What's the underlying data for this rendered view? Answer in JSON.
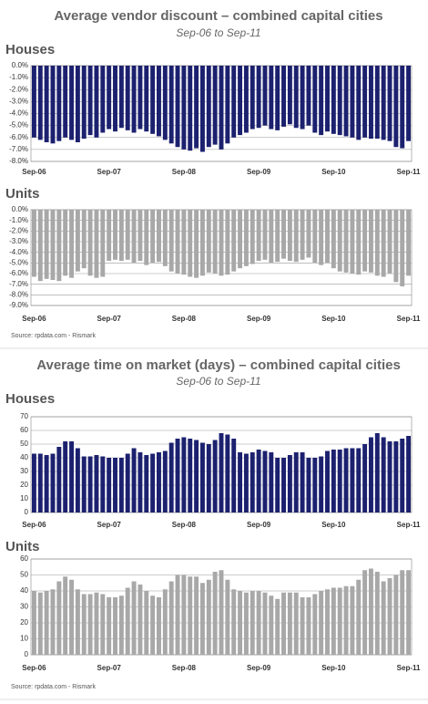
{
  "panels": [
    {
      "title": "Average vendor discount – combined capital cities",
      "subtitle": "Sep-06 to Sep-11",
      "source": "Source: rpdata.com - Rismark"
    },
    {
      "title": "Average time on market (days) – combined capital cities",
      "subtitle": "Sep-06 to Sep-11",
      "source": "Source: rpdata.com - Rismark"
    }
  ],
  "chart_data": [
    {
      "type": "bar",
      "title": "Houses",
      "color": "#1c216f",
      "grid": true,
      "categories": [
        "Sep-06",
        null,
        null,
        null,
        null,
        null,
        null,
        null,
        null,
        null,
        null,
        null,
        "Sep-07",
        null,
        null,
        null,
        null,
        null,
        null,
        null,
        null,
        null,
        null,
        null,
        "Sep-08",
        null,
        null,
        null,
        null,
        null,
        null,
        null,
        null,
        null,
        null,
        null,
        "Sep-09",
        null,
        null,
        null,
        null,
        null,
        null,
        null,
        null,
        null,
        null,
        null,
        "Sep-10",
        null,
        null,
        null,
        null,
        null,
        null,
        null,
        null,
        null,
        null,
        null,
        "Sep-11"
      ],
      "values": [
        -6.0,
        -6.2,
        -6.4,
        -6.5,
        -6.3,
        -6.0,
        -6.2,
        -6.4,
        -6.1,
        -5.8,
        -6.0,
        -5.6,
        -5.3,
        -5.5,
        -5.2,
        -5.4,
        -5.6,
        -5.3,
        -5.5,
        -5.7,
        -5.9,
        -6.2,
        -6.5,
        -6.8,
        -7.0,
        -7.1,
        -6.9,
        -7.2,
        -6.8,
        -6.6,
        -7.0,
        -6.5,
        -6.0,
        -5.8,
        -5.6,
        -5.3,
        -5.2,
        -5.0,
        -5.3,
        -5.4,
        -5.1,
        -4.9,
        -5.2,
        -5.3,
        -5.0,
        -5.6,
        -5.8,
        -5.5,
        -5.7,
        -5.8,
        -5.9,
        -6.0,
        -6.2,
        -6.0,
        -6.1,
        -6.1,
        -6.2,
        -6.3,
        -6.8,
        -6.9,
        -6.3
      ],
      "ylim": [
        -8,
        0
      ],
      "yticks": [
        {
          "value": 0,
          "label": "0.0%"
        },
        {
          "value": -1,
          "label": "-1.0%"
        },
        {
          "value": -2,
          "label": "-2.0%"
        },
        {
          "value": -3,
          "label": "-3.0%"
        },
        {
          "value": -4,
          "label": "-4.0%"
        },
        {
          "value": -5,
          "label": "-5.0%"
        },
        {
          "value": -6,
          "label": "-6.0%"
        },
        {
          "value": -7,
          "label": "-7.0%"
        },
        {
          "value": -8,
          "label": "-8.0%"
        }
      ]
    },
    {
      "type": "bar",
      "title": "Units",
      "color": "#a8a8a8",
      "grid": true,
      "categories": [
        "Sep-06",
        null,
        null,
        null,
        null,
        null,
        null,
        null,
        null,
        null,
        null,
        null,
        "Sep-07",
        null,
        null,
        null,
        null,
        null,
        null,
        null,
        null,
        null,
        null,
        null,
        "Sep-08",
        null,
        null,
        null,
        null,
        null,
        null,
        null,
        null,
        null,
        null,
        null,
        "Sep-09",
        null,
        null,
        null,
        null,
        null,
        null,
        null,
        null,
        null,
        null,
        null,
        "Sep-10",
        null,
        null,
        null,
        null,
        null,
        null,
        null,
        null,
        null,
        null,
        null,
        "Sep-11"
      ],
      "values": [
        -6.3,
        -6.7,
        -6.5,
        -6.6,
        -6.7,
        -6.2,
        -6.4,
        -5.8,
        -5.5,
        -6.2,
        -6.4,
        -6.3,
        -4.8,
        -4.7,
        -4.8,
        -4.7,
        -5.0,
        -4.8,
        -5.2,
        -5.0,
        -4.9,
        -5.3,
        -5.8,
        -6.0,
        -6.1,
        -6.3,
        -6.4,
        -6.2,
        -5.9,
        -6.0,
        -6.2,
        -6.1,
        -5.8,
        -5.5,
        -5.3,
        -5.1,
        -4.8,
        -4.7,
        -5.0,
        -4.9,
        -4.6,
        -4.8,
        -4.9,
        -4.7,
        -4.5,
        -5.0,
        -5.2,
        -5.0,
        -5.5,
        -5.8,
        -5.9,
        -6.0,
        -6.1,
        -5.8,
        -5.9,
        -6.2,
        -6.3,
        -6.0,
        -6.8,
        -7.2,
        -6.2
      ],
      "ylim": [
        -9,
        0
      ],
      "yticks": [
        {
          "value": 0,
          "label": "0.0%"
        },
        {
          "value": -1,
          "label": "-1.0%"
        },
        {
          "value": -2,
          "label": "-2.0%"
        },
        {
          "value": -3,
          "label": "-3.0%"
        },
        {
          "value": -4,
          "label": "-4.0%"
        },
        {
          "value": -5,
          "label": "-5.0%"
        },
        {
          "value": -6,
          "label": "-6.0%"
        },
        {
          "value": -7,
          "label": "-7.0%"
        },
        {
          "value": -8,
          "label": "-8.0%"
        },
        {
          "value": -9,
          "label": "-9.0%"
        }
      ]
    },
    {
      "type": "bar",
      "title": "Houses",
      "color": "#1c216f",
      "grid": true,
      "categories": [
        "Sep-06",
        null,
        null,
        null,
        null,
        null,
        null,
        null,
        null,
        null,
        null,
        null,
        "Sep-07",
        null,
        null,
        null,
        null,
        null,
        null,
        null,
        null,
        null,
        null,
        null,
        "Sep-08",
        null,
        null,
        null,
        null,
        null,
        null,
        null,
        null,
        null,
        null,
        null,
        "Sep-09",
        null,
        null,
        null,
        null,
        null,
        null,
        null,
        null,
        null,
        null,
        null,
        "Sep-10",
        null,
        null,
        null,
        null,
        null,
        null,
        null,
        null,
        null,
        null,
        null,
        "Sep-11"
      ],
      "values": [
        43,
        43,
        42,
        43,
        48,
        52,
        52,
        47,
        41,
        41,
        42,
        41,
        40,
        40,
        40,
        43,
        47,
        44,
        42,
        43,
        44,
        45,
        51,
        54,
        55,
        54,
        53,
        51,
        50,
        53,
        58,
        57,
        54,
        44,
        43,
        44,
        46,
        45,
        44,
        40,
        40,
        42,
        44,
        44,
        40,
        40,
        41,
        45,
        46,
        46,
        47,
        47,
        47,
        50,
        55,
        58,
        55,
        52,
        52,
        54,
        56
      ],
      "ylim": [
        0,
        70
      ],
      "yticks": [
        0,
        10,
        20,
        30,
        40,
        50,
        60,
        70
      ]
    },
    {
      "type": "bar",
      "title": "Units",
      "color": "#a8a8a8",
      "grid": true,
      "categories": [
        "Sep-06",
        null,
        null,
        null,
        null,
        null,
        null,
        null,
        null,
        null,
        null,
        null,
        "Sep-07",
        null,
        null,
        null,
        null,
        null,
        null,
        null,
        null,
        null,
        null,
        null,
        "Sep-08",
        null,
        null,
        null,
        null,
        null,
        null,
        null,
        null,
        null,
        null,
        null,
        "Sep-09",
        null,
        null,
        null,
        null,
        null,
        null,
        null,
        null,
        null,
        null,
        null,
        "Sep-10",
        null,
        null,
        null,
        null,
        null,
        null,
        null,
        null,
        null,
        null,
        null,
        "Sep-11"
      ],
      "values": [
        40,
        39,
        40,
        41,
        46,
        49,
        47,
        41,
        38,
        38,
        39,
        38,
        36,
        36,
        37,
        42,
        46,
        44,
        40,
        37,
        36,
        41,
        46,
        50,
        50,
        49,
        49,
        45,
        47,
        52,
        53,
        47,
        41,
        40,
        39,
        40,
        40,
        39,
        37,
        35,
        39,
        39,
        39,
        36,
        36,
        38,
        40,
        41,
        42,
        42,
        43,
        43,
        47,
        53,
        54,
        52,
        46,
        48,
        50,
        53,
        53
      ],
      "ylim": [
        0,
        60
      ],
      "yticks": [
        0,
        10,
        20,
        30,
        40,
        50,
        60
      ]
    }
  ]
}
